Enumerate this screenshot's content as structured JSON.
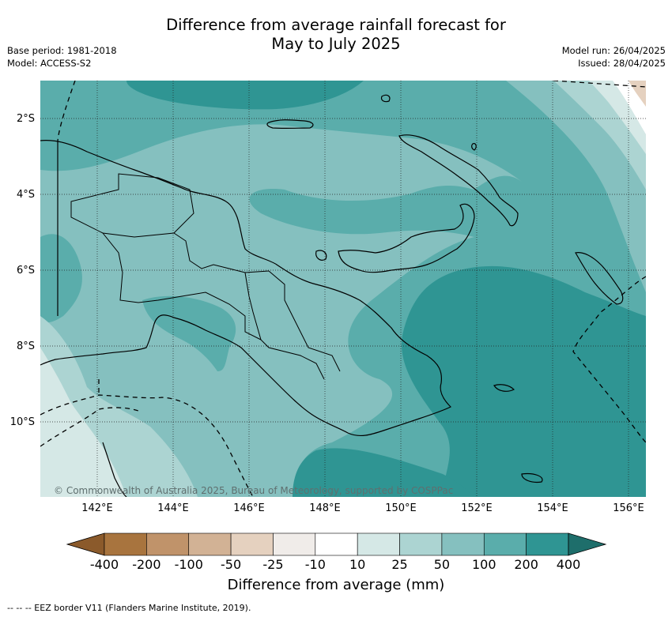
{
  "title_line1": "Difference from average rainfall forecast for",
  "title_line2": "May to July 2025",
  "meta_left": [
    "Base period: 1981-2018",
    "Model: ACCESS-S2"
  ],
  "meta_right": [
    "Model run: 26/04/2025",
    "Issued: 28/04/2025"
  ],
  "latitude_labels": [
    "2°S",
    "4°S",
    "6°S",
    "8°S",
    "10°S"
  ],
  "longitude_labels": [
    "142°E",
    "144°E",
    "146°E",
    "148°E",
    "150°E",
    "152°E",
    "154°E",
    "156°E"
  ],
  "copyright": "© Commonwealth of Australia 2025, Bureau of Meteorology, supported by COSPPac",
  "colorbar": {
    "ticks": [
      "-400",
      "-200",
      "-100",
      "-50",
      "-25",
      "-10",
      "10",
      "25",
      "50",
      "100",
      "200",
      "400"
    ],
    "colors": [
      "#8b5a2b",
      "#a8743e",
      "#c0936a",
      "#d2b295",
      "#e5d1bf",
      "#f0ece9",
      "#ffffff",
      "#d5e8e6",
      "#acd4d2",
      "#85c0bf",
      "#5aadab",
      "#2f9593",
      "#1e6e6b"
    ],
    "label": "Difference from average (mm)"
  },
  "footnote": "-- -- -- EEZ border V11 (Flanders Marine Institute, 2019)."
}
